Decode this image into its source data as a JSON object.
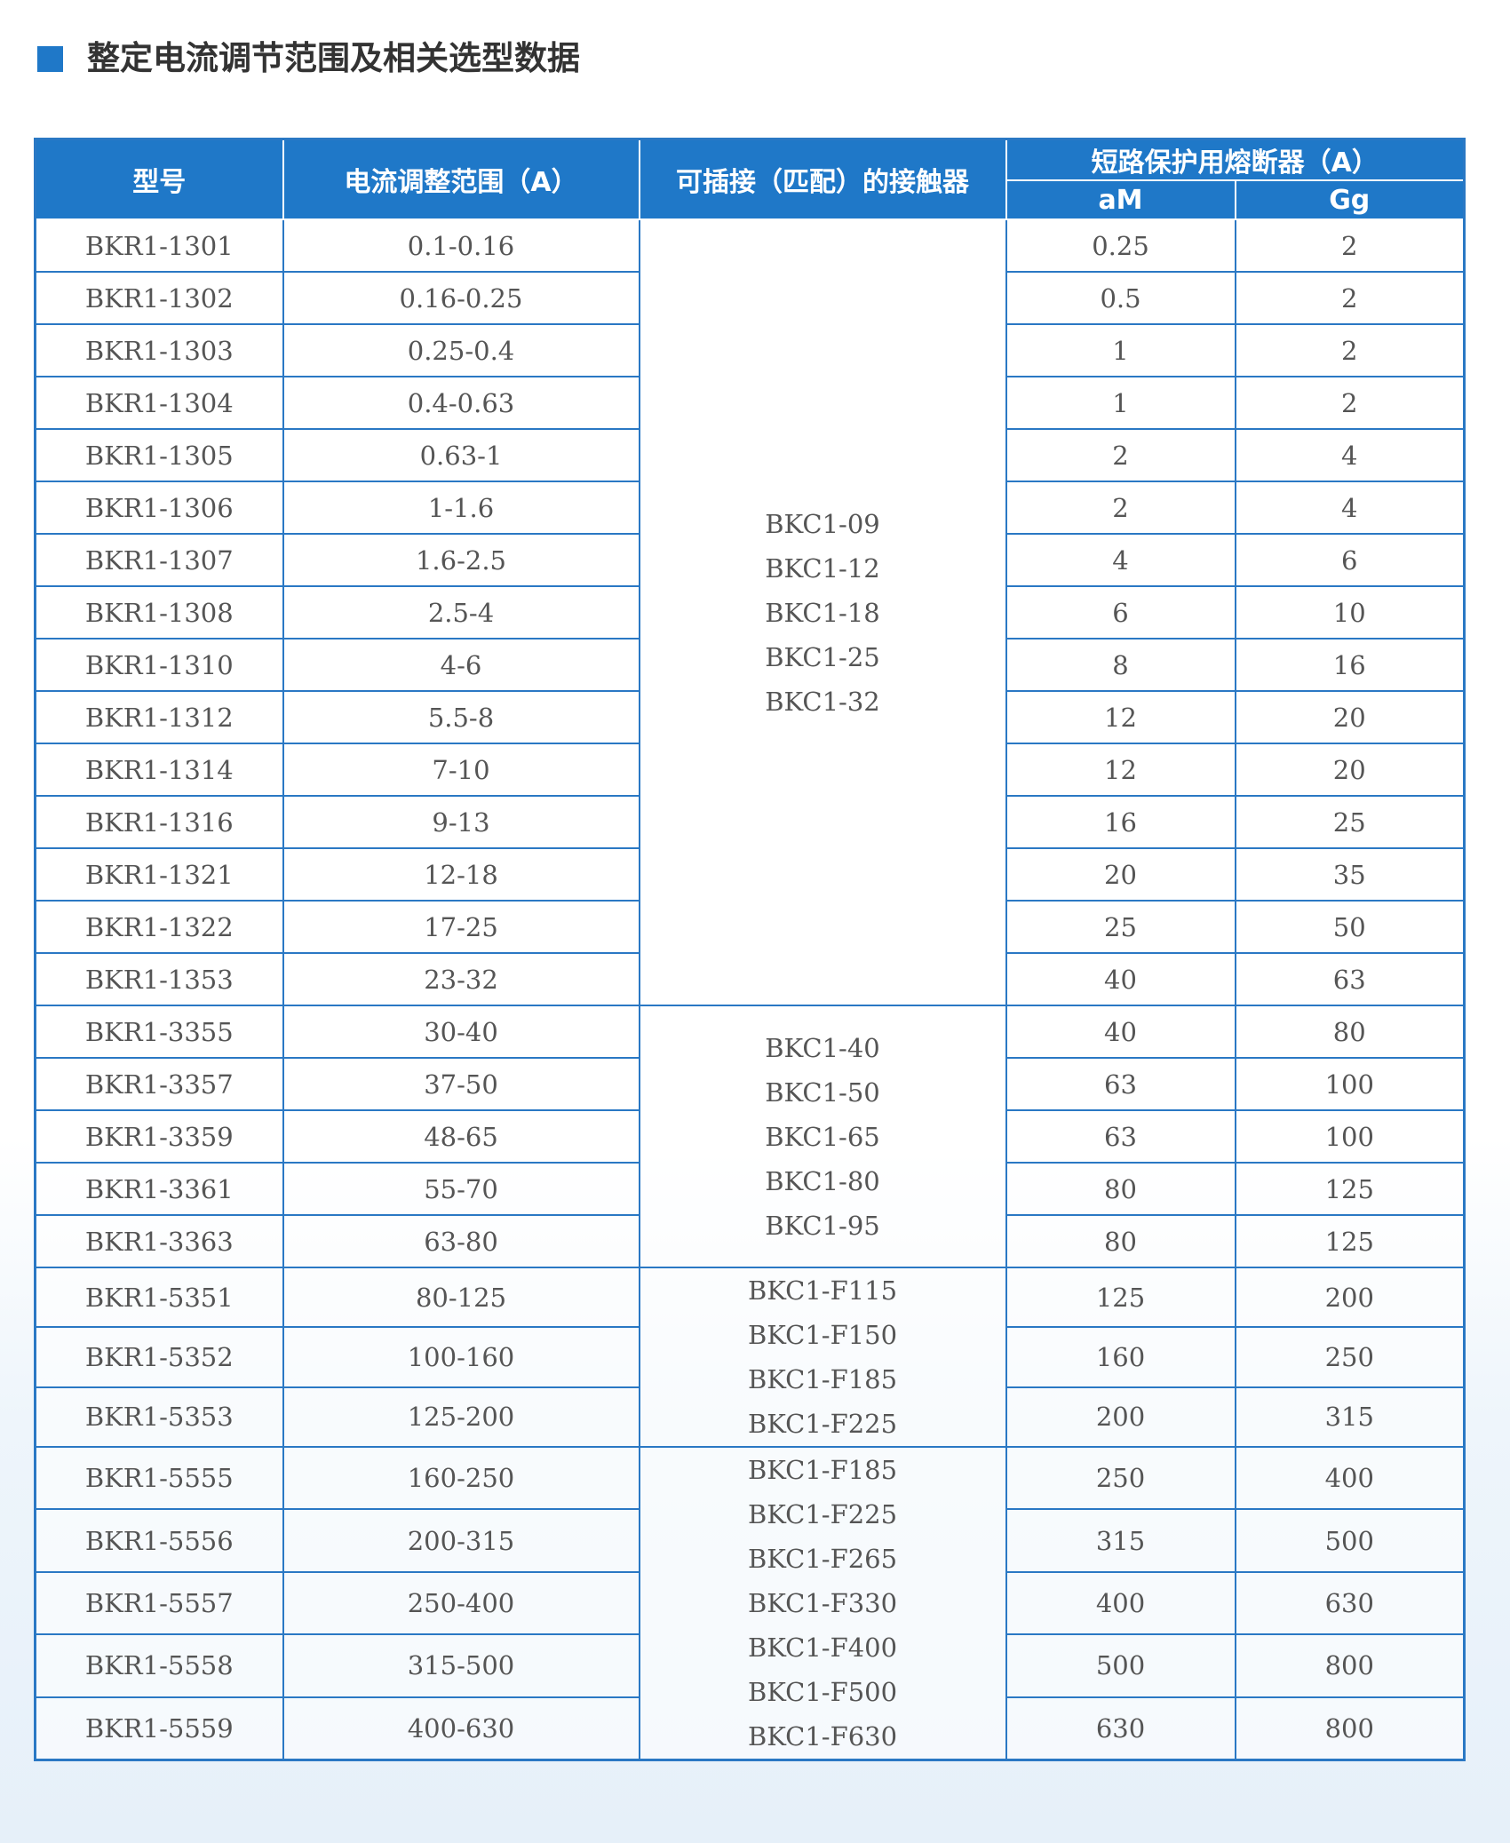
{
  "title": "整定电流调节范围及相关选型数据",
  "headers": {
    "model": "型号",
    "range": "电流调整范围（A）",
    "contactor": "可插接（匹配）的接触器",
    "fuse": "短路保护用熔断器（A）",
    "am": "aM",
    "gg": "Gg"
  },
  "groups": [
    {
      "contactors": [
        "BKC1-09",
        "BKC1-12",
        "BKC1-18",
        "BKC1-25",
        "BKC1-32"
      ],
      "rows": [
        [
          "BKR1-1301",
          "0.1-0.16",
          0.25,
          2
        ],
        [
          "BKR1-1302",
          "0.16-0.25",
          0.5,
          2
        ],
        [
          "BKR1-1303",
          "0.25-0.4",
          1,
          2
        ],
        [
          "BKR1-1304",
          "0.4-0.63",
          1,
          2
        ],
        [
          "BKR1-1305",
          "0.63-1",
          2,
          4
        ],
        [
          "BKR1-1306",
          "1-1.6",
          2,
          4
        ],
        [
          "BKR1-1307",
          "1.6-2.5",
          4,
          6
        ],
        [
          "BKR1-1308",
          "2.5-4",
          6,
          10
        ],
        [
          "BKR1-1310",
          "4-6",
          8,
          16
        ],
        [
          "BKR1-1312",
          "5.5-8",
          12,
          20
        ],
        [
          "BKR1-1314",
          "7-10",
          12,
          20
        ],
        [
          "BKR1-1316",
          "9-13",
          16,
          25
        ],
        [
          "BKR1-1321",
          "12-18",
          20,
          35
        ],
        [
          "BKR1-1322",
          "17-25",
          25,
          50
        ],
        [
          "BKR1-1353",
          "23-32",
          40,
          63
        ]
      ]
    },
    {
      "contactors": [
        "BKC1-40",
        "BKC1-50",
        "BKC1-65",
        "BKC1-80",
        "BKC1-95"
      ],
      "rows": [
        [
          "BKR1-3355",
          "30-40",
          40,
          80
        ],
        [
          "BKR1-3357",
          "37-50",
          63,
          100
        ],
        [
          "BKR1-3359",
          "48-65",
          63,
          100
        ],
        [
          "BKR1-3361",
          "55-70",
          80,
          125
        ],
        [
          "BKR1-3363",
          "63-80",
          80,
          125
        ]
      ]
    },
    {
      "contactors": [
        "BKC1-F115",
        "BKC1-F150",
        "BKC1-F185",
        "BKC1-F225"
      ],
      "rows": [
        [
          "BKR1-5351",
          "80-125",
          125,
          200
        ],
        [
          "BKR1-5352",
          "100-160",
          160,
          250
        ],
        [
          "BKR1-5353",
          "125-200",
          200,
          315
        ]
      ]
    },
    {
      "contactors": [
        "BKC1-F185",
        "BKC1-F225",
        "BKC1-F265",
        "BKC1-F330",
        "BKC1-F400",
        "BKC1-F500",
        "BKC1-F630"
      ],
      "rows": [
        [
          "BKR1-5555",
          "160-250",
          250,
          400
        ],
        [
          "BKR1-5556",
          "200-315",
          315,
          500
        ],
        [
          "BKR1-5557",
          "250-400",
          400,
          630
        ],
        [
          "BKR1-5558",
          "315-500",
          500,
          800
        ],
        [
          "BKR1-5559",
          "400-630",
          630,
          800
        ]
      ]
    }
  ]
}
